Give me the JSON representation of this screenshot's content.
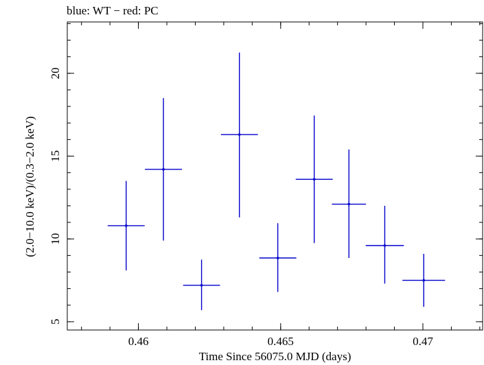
{
  "chart_data": {
    "type": "scatter",
    "title": "blue: WT − red: PC",
    "xlabel": "Time Since 56075.0 MJD (days)",
    "ylabel": "(2.0−10.0 keV)/(0.3−2.0 keV)",
    "xlim": [
      0.4575,
      0.4721
    ],
    "ylim": [
      4.5,
      23.1
    ],
    "x_ticks": [
      0.46,
      0.465,
      0.47
    ],
    "x_tick_labels": [
      "0.46",
      "0.465",
      "0.47"
    ],
    "y_ticks": [
      5,
      10,
      15,
      20
    ],
    "y_tick_labels": [
      "5",
      "10",
      "15",
      "20"
    ],
    "grid": false,
    "series": [
      {
        "color": "#0000cc",
        "points": [
          {
            "x": 0.45957,
            "y": 10.8,
            "xerr": 0.00065,
            "ylo": 8.1,
            "yhi": 13.5
          },
          {
            "x": 0.46088,
            "y": 14.2,
            "xerr": 0.00065,
            "ylo": 9.9,
            "yhi": 18.5
          },
          {
            "x": 0.46222,
            "y": 7.2,
            "xerr": 0.00065,
            "ylo": 5.7,
            "yhi": 8.75
          },
          {
            "x": 0.46355,
            "y": 16.3,
            "xerr": 0.00065,
            "ylo": 11.3,
            "yhi": 21.25
          },
          {
            "x": 0.4649,
            "y": 8.85,
            "xerr": 0.00065,
            "ylo": 6.8,
            "yhi": 10.95
          },
          {
            "x": 0.46618,
            "y": 13.6,
            "xerr": 0.00065,
            "ylo": 9.75,
            "yhi": 17.45
          },
          {
            "x": 0.4674,
            "y": 12.1,
            "xerr": 0.0006,
            "ylo": 8.85,
            "yhi": 15.4
          },
          {
            "x": 0.46866,
            "y": 9.6,
            "xerr": 0.00067,
            "ylo": 7.3,
            "yhi": 12.0
          },
          {
            "x": 0.47003,
            "y": 7.5,
            "xerr": 0.00075,
            "ylo": 5.9,
            "yhi": 9.1
          }
        ]
      }
    ]
  }
}
